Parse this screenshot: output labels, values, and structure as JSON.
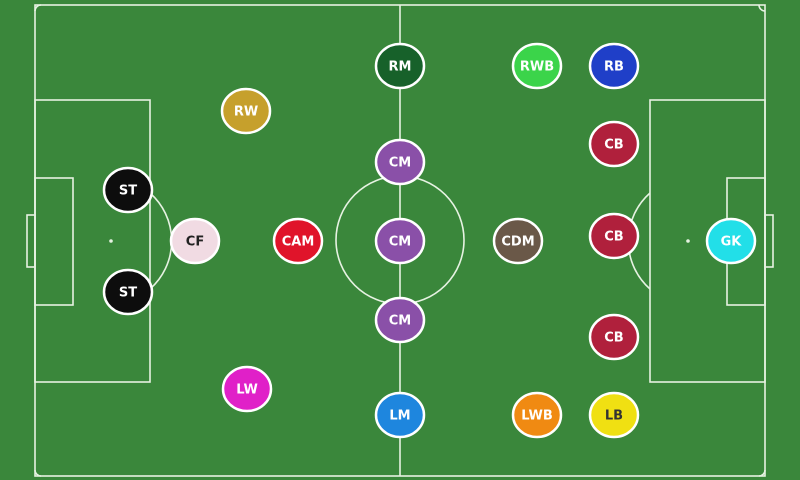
{
  "pitch": {
    "grass_color": "#3a873b",
    "line_color": "#e6f2e2"
  },
  "players": [
    {
      "label": "RM",
      "fill": "#17612a",
      "text": "#ffffff"
    },
    {
      "label": "RWB",
      "fill": "#3bd44a",
      "text": "#ffffff"
    },
    {
      "label": "RB",
      "fill": "#1f3fc8",
      "text": "#ffffff"
    },
    {
      "label": "RW",
      "fill": "#c6a02c",
      "text": "#ffffff"
    },
    {
      "label": "CB",
      "fill": "#b0203c",
      "text": "#ffffff"
    },
    {
      "label": "ST",
      "fill": "#0d0d0d",
      "text": "#ffffff"
    },
    {
      "label": "CM",
      "fill": "#8a50a8",
      "text": "#ffffff"
    },
    {
      "label": "CF",
      "fill": "#f1dbe3",
      "text": "#222222"
    },
    {
      "label": "CAM",
      "fill": "#e0142a",
      "text": "#ffffff"
    },
    {
      "label": "CM",
      "fill": "#8a50a8",
      "text": "#ffffff"
    },
    {
      "label": "CDM",
      "fill": "#6a5848",
      "text": "#ffffff"
    },
    {
      "label": "CB",
      "fill": "#b0203c",
      "text": "#ffffff"
    },
    {
      "label": "GK",
      "fill": "#22dfe8",
      "text": "#ffffff"
    },
    {
      "label": "ST",
      "fill": "#0d0d0d",
      "text": "#ffffff"
    },
    {
      "label": "CM",
      "fill": "#8a50a8",
      "text": "#ffffff"
    },
    {
      "label": "CB",
      "fill": "#b0203c",
      "text": "#ffffff"
    },
    {
      "label": "LW",
      "fill": "#e020c8",
      "text": "#ffffff"
    },
    {
      "label": "LM",
      "fill": "#1e86de",
      "text": "#ffffff"
    },
    {
      "label": "LWB",
      "fill": "#f08a12",
      "text": "#ffffff"
    },
    {
      "label": "LB",
      "fill": "#f0e012",
      "text": "#333333"
    }
  ]
}
